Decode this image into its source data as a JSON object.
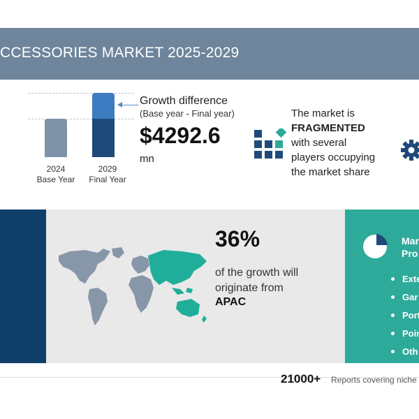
{
  "header": {
    "title": "CCESSORIES MARKET 2025-2029"
  },
  "growth": {
    "bars": [
      {
        "year": "2024",
        "label": "Base Year"
      },
      {
        "year": "2029",
        "label": "Final Year"
      }
    ],
    "title": "Growth difference",
    "subtitle": "(Base year - Final year)",
    "value": "$4292.6",
    "unit": "mn"
  },
  "market": {
    "line1": "The market is",
    "emphasis": "FRAGMENTED",
    "line3": "with several",
    "line4": "players occupying",
    "line5": "the market share",
    "icon": "fragmented-blocks-icon"
  },
  "region": {
    "percent": "36%",
    "line1": "of the growth will",
    "line2": "originate from",
    "name": "APAC",
    "map_icon": "world-map-icon"
  },
  "segments": {
    "title_line1": "Mar",
    "title_line2": "Pro",
    "items": [
      "Exte",
      "Gar",
      "Port",
      "Poin",
      "Oth"
    ],
    "icon": "pie-chart-icon"
  },
  "footer": {
    "count": "21000+",
    "text": "Reports covering niche"
  },
  "colors": {
    "title_band": "#6e859c",
    "bar_base": "#7f93a8",
    "bar_final_top": "#3d7cc0",
    "bar_final_bottom": "#1e4a7a",
    "dark_strip": "#0f3e6b",
    "grey_panel": "#e9e9ea",
    "teal_panel": "#2eaa9a",
    "map_grey": "#8796a8",
    "map_highlight": "#1fae9a"
  }
}
